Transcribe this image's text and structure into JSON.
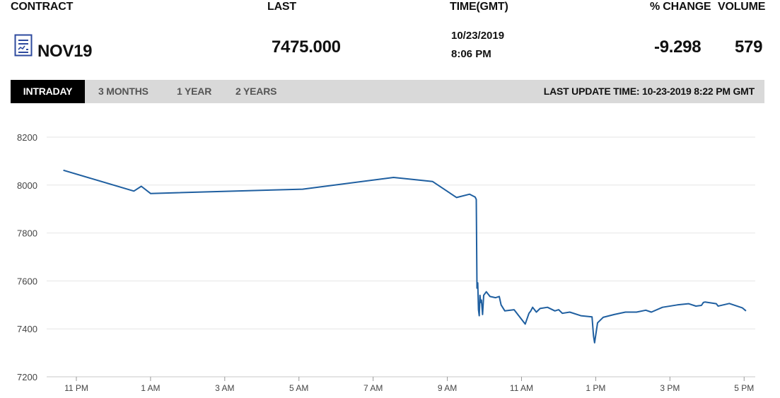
{
  "header": {
    "contract_label": "CONTRACT",
    "last_label": "LAST",
    "time_label": "TIME(GMT)",
    "change_label": "% CHANGE",
    "volume_label": "VOLUME"
  },
  "quote": {
    "contract": "NOV19",
    "last": "7475.000",
    "date": "10/23/2019",
    "time": "8:06 PM",
    "change": "-9.298",
    "volume": "579"
  },
  "tabs": [
    {
      "label": "INTRADAY",
      "active": true
    },
    {
      "label": "3 MONTHS",
      "active": false
    },
    {
      "label": "1 YEAR",
      "active": false
    },
    {
      "label": "2 YEARS",
      "active": false
    }
  ],
  "last_update": "LAST UPDATE TIME: 10-23-2019 8:22 PM GMT",
  "icons": {
    "contract": "contract-document-icon"
  },
  "colors": {
    "line": "#1f5fa0",
    "grid": "#e6e6e6",
    "tab_active_bg": "#000000",
    "tab_bar_bg": "#d9d9d9"
  },
  "chart_data": {
    "type": "line",
    "title": "",
    "xlabel": "",
    "ylabel": "",
    "grid": true,
    "ylim": [
      7200,
      8200
    ],
    "y_ticks": [
      8200,
      8000,
      7800,
      7600,
      7400,
      7200
    ],
    "x_ticks": [
      {
        "hour": -1,
        "label": "11 PM"
      },
      {
        "hour": 1,
        "label": "1 AM"
      },
      {
        "hour": 3,
        "label": "3 AM"
      },
      {
        "hour": 5,
        "label": "5 AM"
      },
      {
        "hour": 7,
        "label": "7 AM"
      },
      {
        "hour": 9,
        "label": "9 AM"
      },
      {
        "hour": 11,
        "label": "11 AM"
      },
      {
        "hour": 13,
        "label": "1 PM"
      },
      {
        "hour": 15,
        "label": "3 PM"
      },
      {
        "hour": 17,
        "label": "5 PM"
      }
    ],
    "series": [
      {
        "x": [
          -1.35,
          0.55,
          0.75,
          1.0,
          5.1,
          7.55,
          8.6,
          9.25,
          9.6,
          9.75,
          9.78,
          9.8,
          9.82,
          9.84,
          9.86,
          9.88,
          9.9,
          9.92,
          9.95,
          9.98,
          10.05,
          10.15,
          10.3,
          10.4,
          10.45,
          10.55,
          10.8,
          11.1,
          11.2,
          11.25,
          11.3,
          11.4,
          11.5,
          11.7,
          11.9,
          12.0,
          12.1,
          12.3,
          12.6,
          12.9,
          12.94,
          12.97,
          13.05,
          13.2,
          13.5,
          13.8,
          14.1,
          14.35,
          14.5,
          14.8,
          15.2,
          15.5,
          15.7,
          15.85,
          15.9,
          15.95,
          16.25,
          16.3,
          16.6,
          16.95,
          17.05
        ],
        "y": [
          8062,
          7975,
          7995,
          7965,
          7983,
          8032,
          8015,
          7948,
          7962,
          7950,
          7940,
          7570,
          7592,
          7480,
          7455,
          7540,
          7510,
          7520,
          7460,
          7540,
          7555,
          7535,
          7530,
          7535,
          7500,
          7475,
          7480,
          7420,
          7465,
          7475,
          7490,
          7470,
          7485,
          7490,
          7475,
          7480,
          7465,
          7470,
          7455,
          7450,
          7370,
          7342,
          7425,
          7448,
          7460,
          7470,
          7470,
          7478,
          7470,
          7490,
          7500,
          7505,
          7495,
          7498,
          7510,
          7512,
          7505,
          7495,
          7506,
          7488,
          7475
        ]
      }
    ]
  }
}
